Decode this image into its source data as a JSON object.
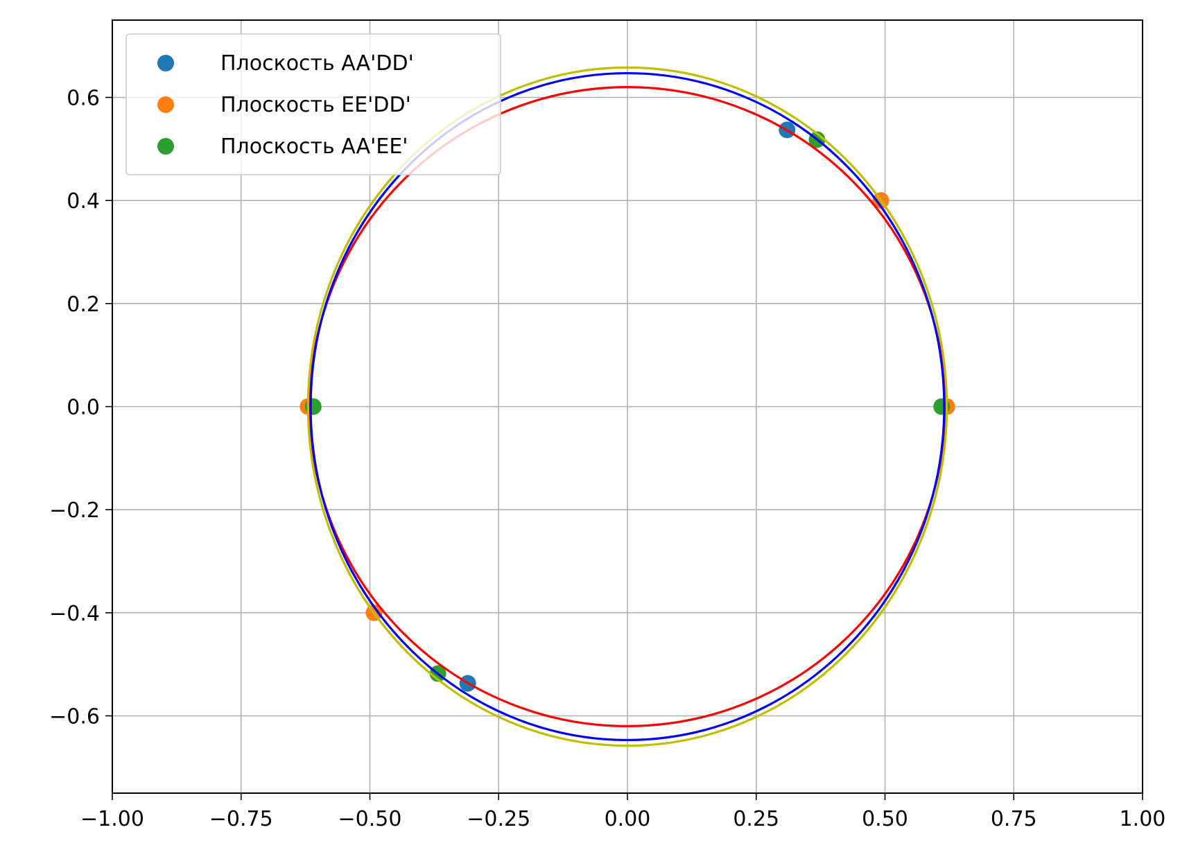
{
  "chart_data": {
    "type": "scatter",
    "title": "",
    "xlabel": "",
    "ylabel": "",
    "xlim": [
      -1.0,
      1.0
    ],
    "ylim": [
      -0.75,
      0.75
    ],
    "xticks": [
      -1.0,
      -0.75,
      -0.5,
      -0.25,
      0.0,
      0.25,
      0.5,
      0.75,
      1.0
    ],
    "xtick_labels": [
      "−1.00",
      "−0.75",
      "−0.50",
      "−0.25",
      "0.00",
      "0.25",
      "0.50",
      "0.75",
      "1.00"
    ],
    "yticks": [
      -0.6,
      -0.4,
      -0.2,
      0.0,
      0.2,
      0.4,
      0.6
    ],
    "ytick_labels": [
      "−0.6",
      "−0.4",
      "−0.2",
      "0.0",
      "0.2",
      "0.4",
      "0.6"
    ],
    "grid": true,
    "legend_position": "top-left",
    "series": [
      {
        "name": "Плоскость AA'DD'",
        "color": "#1f77b4",
        "x": [
          0.31,
          -0.31
        ],
        "y": [
          0.537,
          -0.537
        ]
      },
      {
        "name": "Плоскость EE'DD'",
        "color": "#ff7f0e",
        "x": [
          -0.62,
          0.62,
          0.492,
          -0.492
        ],
        "y": [
          0.0,
          0.0,
          0.4,
          -0.4
        ]
      },
      {
        "name": "Плоскость AA'EE'",
        "color": "#2ca02c",
        "x": [
          -0.61,
          0.61,
          0.368,
          -0.368
        ],
        "y": [
          0.0,
          0.0,
          0.518,
          -0.518
        ]
      }
    ],
    "curves": [
      {
        "kind": "ellipse",
        "color": "#ff0000",
        "cx": 0,
        "cy": 0,
        "rx": 0.617,
        "ry": 0.62
      },
      {
        "kind": "ellipse",
        "color": "#0000ff",
        "cx": 0,
        "cy": 0,
        "rx": 0.615,
        "ry": 0.647
      },
      {
        "kind": "ellipse",
        "color": "#bfbf00",
        "cx": 0,
        "cy": 0,
        "rx": 0.62,
        "ry": 0.658
      }
    ]
  }
}
